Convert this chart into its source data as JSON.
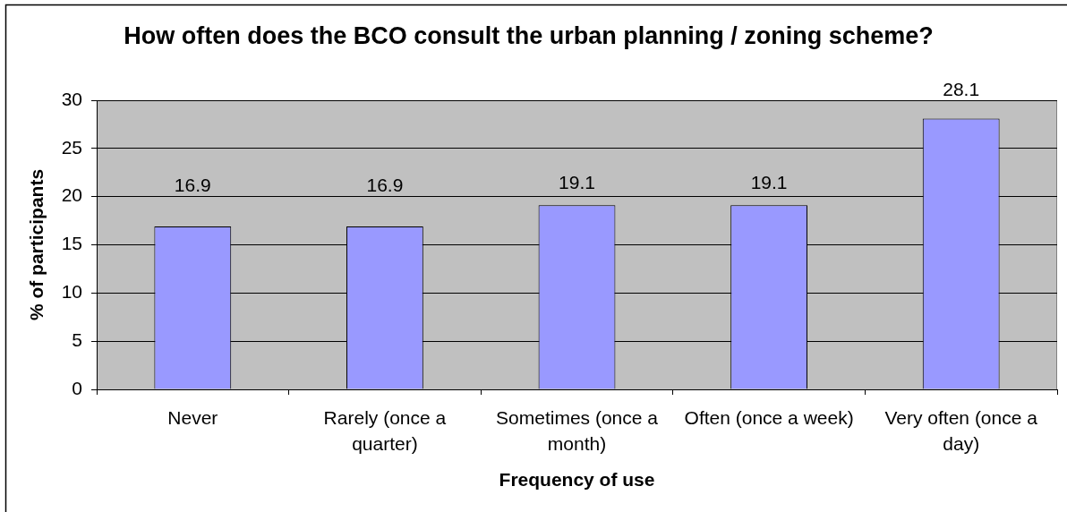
{
  "chart_data": {
    "type": "bar",
    "title": "How often does the BCO consult the urban planning / zoning scheme?",
    "xlabel": "Frequency of use",
    "ylabel": "% of participants",
    "categories": [
      "Never",
      "Rarely (once a quarter)",
      "Sometimes (once a month)",
      "Often (once a week)",
      "Very often (once a day)"
    ],
    "values": [
      16.9,
      16.9,
      19.1,
      19.1,
      28.1
    ],
    "color": "#9999ff",
    "ylim": [
      0,
      30
    ],
    "yticks": [
      0,
      5,
      10,
      15,
      20,
      25,
      30
    ],
    "grid": "y",
    "data_labels": true
  }
}
